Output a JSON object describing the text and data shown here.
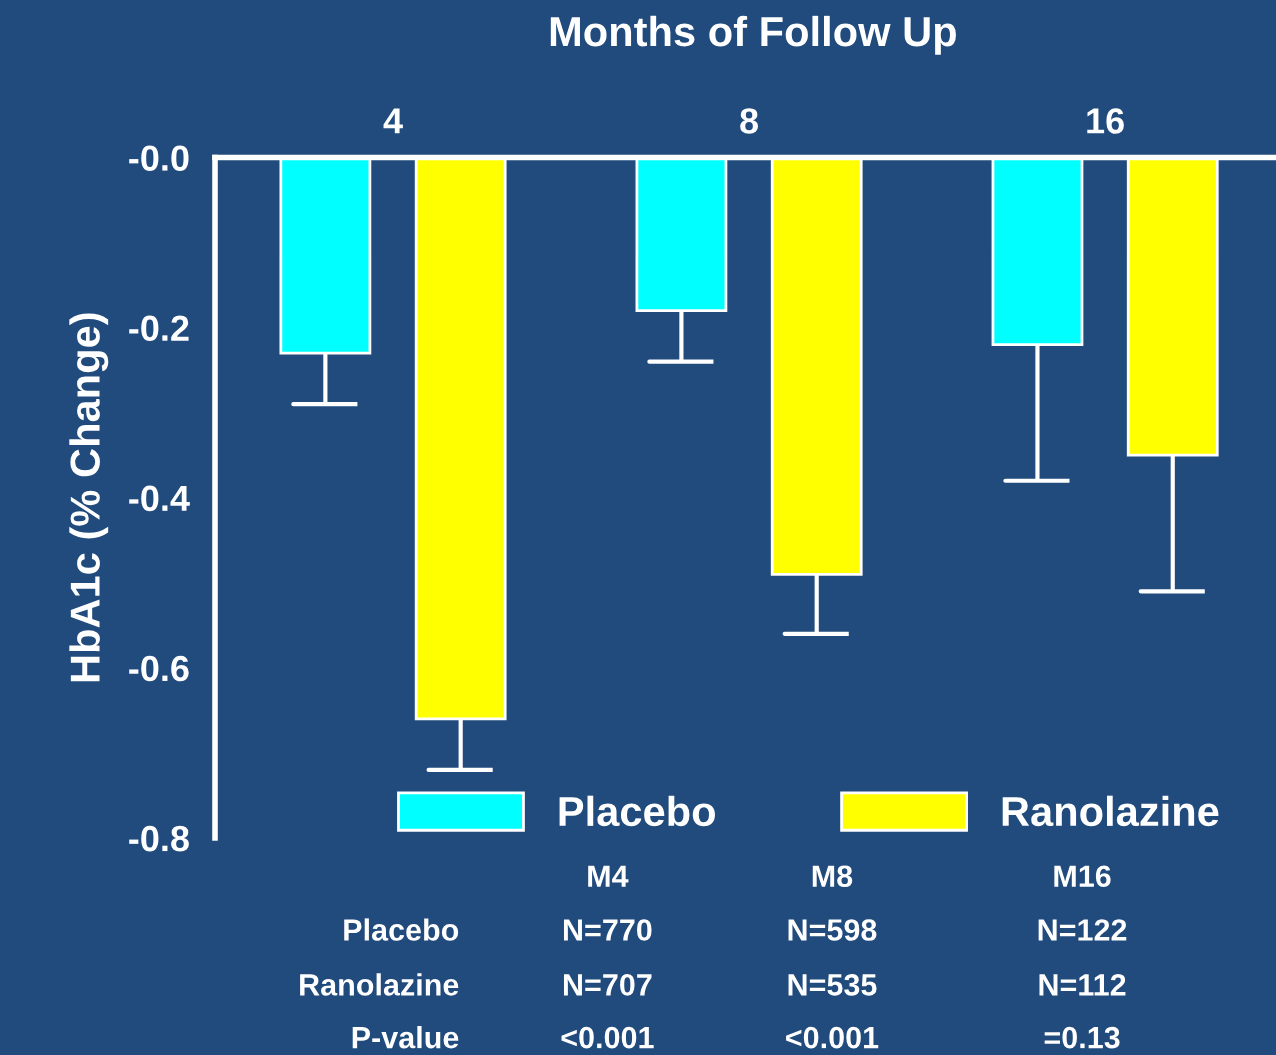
{
  "chart_data": {
    "type": "bar",
    "title": "Months of Follow Up",
    "ylabel": "HbA1c (% Change)",
    "categories": [
      "4",
      "8",
      "16"
    ],
    "series": [
      {
        "name": "Placebo",
        "color": "#00ffff",
        "values": [
          -0.23,
          -0.18,
          -0.22
        ],
        "errors": [
          [
            -0.29,
            -0.23
          ],
          [
            -0.24,
            -0.18
          ],
          [
            -0.38,
            -0.22
          ]
        ]
      },
      {
        "name": "Ranolazine",
        "color": "#ffff00",
        "values": [
          -0.66,
          -0.49,
          -0.35
        ],
        "errors": [
          [
            -0.72,
            -0.66
          ],
          [
            -0.56,
            -0.49
          ],
          [
            -0.51,
            -0.35
          ]
        ]
      }
    ],
    "ylim": [
      -0.8,
      0
    ],
    "yticks": [
      {
        "value": 0,
        "label": "-0.0"
      },
      -0.2,
      -0.4,
      -0.6,
      -0.8
    ],
    "grid": false,
    "legend": "bottom",
    "annotations": [
      "M4",
      "M8",
      "M16",
      "Placebo",
      "N=770",
      "N=598",
      "N=122",
      "Ranolazine",
      "N=707",
      "N=535",
      "N=112",
      "P-value",
      "<0.001",
      "<0.001",
      "=0.13"
    ]
  }
}
